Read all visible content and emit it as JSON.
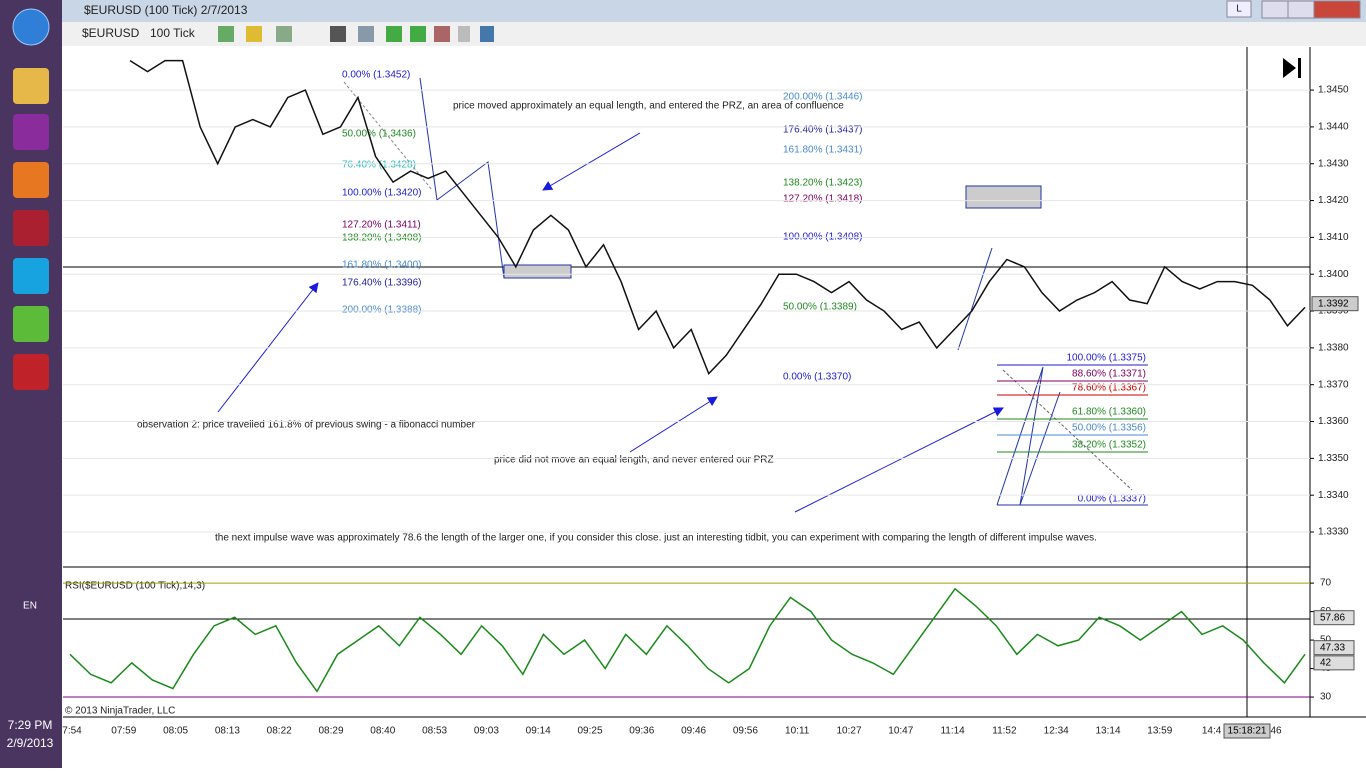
{
  "window": {
    "title": "$EURUSD (100 Tick)  2/7/2013",
    "button": "L"
  },
  "toolbar": {
    "instrument": "$EURUSD",
    "interval": "100 Tick"
  },
  "taskbar": {
    "language": "EN",
    "time": "7:29 PM",
    "date": "2/9/2013"
  },
  "price_panel": {
    "ylim": [
      1.33205,
      1.34617
    ],
    "yticks": [
      {
        "value": 1.333,
        "label": "1.3330"
      },
      {
        "value": 1.334,
        "label": "1.3340"
      },
      {
        "value": 1.335,
        "label": "1.3350"
      },
      {
        "value": 1.336,
        "label": "1.3360"
      },
      {
        "value": 1.337,
        "label": "1.3370"
      },
      {
        "value": 1.338,
        "label": "1.3380"
      },
      {
        "value": 1.339,
        "label": "1.3390"
      },
      {
        "value": 1.34,
        "label": "1.3400"
      },
      {
        "value": 1.341,
        "label": "1.3410"
      },
      {
        "value": 1.342,
        "label": "1.3420"
      },
      {
        "value": 1.343,
        "label": "1.3430"
      },
      {
        "value": 1.344,
        "label": "1.3440"
      },
      {
        "value": 1.345,
        "label": "1.3450"
      }
    ],
    "closes": [
      1.3458,
      1.3455,
      1.3458,
      1.3458,
      1.344,
      1.343,
      1.344,
      1.3442,
      1.344,
      1.3448,
      1.345,
      1.3438,
      1.344,
      1.3448,
      1.3432,
      1.3425,
      1.3428,
      1.3426,
      1.3428,
      1.3422,
      1.3416,
      1.341,
      1.3402,
      1.3412,
      1.3416,
      1.3412,
      1.3402,
      1.3408,
      1.3398,
      1.3385,
      1.339,
      1.338,
      1.3385,
      1.3373,
      1.3378,
      1.3385,
      1.3392,
      1.34,
      1.34,
      1.3398,
      1.3395,
      1.3398,
      1.3393,
      1.339,
      1.3385,
      1.3387,
      1.338,
      1.3385,
      1.339,
      1.3398,
      1.3404,
      1.3402,
      1.3395,
      1.339,
      1.3393,
      1.3395,
      1.3398,
      1.3393,
      1.3392,
      1.3402,
      1.3398,
      1.3396,
      1.3398,
      1.3398,
      1.3397,
      1.3393,
      1.3386,
      1.3391
    ],
    "last_price": 1.3392,
    "annotations": [
      "price moved approximately an equal length, and entered the PRZ, an area of confluence",
      "observation 2: price travelled 161.8% of previous swing - a fibonacci number",
      "price did not move an equal length, and never entered our PRZ",
      "the next impulse wave was approximately 78.6 the length of the larger one, if you consider this close. just an interesting tidbit, you can experiment with comparing the length of different impulse waves."
    ],
    "fib1": [
      "0.00% (1.3452)",
      "50.00% (1.3436)",
      "76.40% (1.3428)",
      "100.00% (1.3420)",
      "127.20% (1.3411)",
      "138.20% (1.3408)",
      "161.80% (1.3400)",
      "176.40% (1.3396)",
      "200.00% (1.3388)"
    ],
    "fib2": [
      "200.00% (1.3446)",
      "176.40% (1.3437)",
      "161.80% (1.3431)",
      "138.20% (1.3423)",
      "127.20% (1.3418)",
      "100.00% (1.3408)",
      "50.00% (1.3389)",
      "0.00% (1.3370)"
    ],
    "fib3": [
      "100.00% (1.3375)",
      "88.60% (1.3371)",
      "78.60% (1.3367)",
      "61.80% (1.3360)",
      "50.00% (1.3356)",
      "38.20% (1.3352)",
      "0.00% (1.3337)"
    ]
  },
  "rsi_panel": {
    "title": "RSI($EURUSD (100 Tick),14,3)",
    "ylim": [
      23,
      74.6
    ],
    "yticks": [
      30,
      40,
      50,
      60,
      70
    ],
    "values": [
      45,
      38,
      35,
      42,
      36,
      33,
      45,
      55,
      58,
      52,
      55,
      42,
      32,
      45,
      50,
      55,
      48,
      58,
      52,
      45,
      55,
      48,
      38,
      52,
      45,
      50,
      40,
      52,
      45,
      55,
      48,
      40,
      35,
      40,
      55,
      65,
      60,
      50,
      45,
      42,
      38,
      48,
      58,
      68,
      62,
      55,
      45,
      52,
      48,
      50,
      58,
      55,
      50,
      55,
      60,
      52,
      55,
      50,
      42,
      35,
      45
    ],
    "badges": [
      57.86,
      47.33,
      42
    ],
    "copyright": "© 2013 NinjaTrader, LLC"
  },
  "time_axis": {
    "labels": [
      "7:54",
      "07:59",
      "08:05",
      "08:13",
      "08:22",
      "08:29",
      "08:40",
      "08:53",
      "09:03",
      "09:14",
      "09:25",
      "09:36",
      "09:46",
      "09:56",
      "10:11",
      "10:27",
      "10:47",
      "11:14",
      "11:52",
      "12:34",
      "13:14",
      "13:59",
      "14:4"
    ],
    "crosshair_label": "15:18:21",
    "trailing": "46"
  }
}
